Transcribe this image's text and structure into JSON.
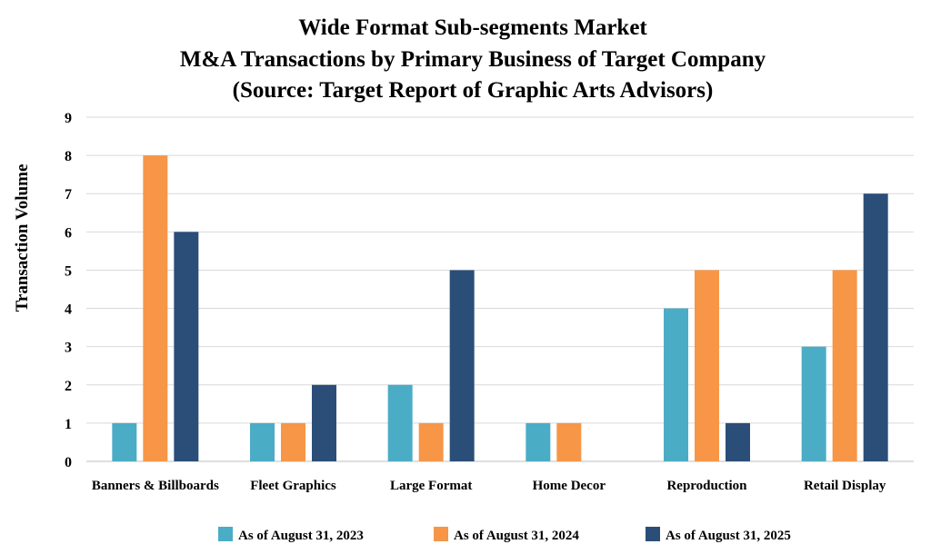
{
  "chart_data": {
    "type": "bar",
    "title": [
      "Wide Format Sub-segments Market",
      "M&A Transactions by Primary Business of Target Company",
      "(Source: Target Report of Graphic Arts Advisors)"
    ],
    "xlabel": "",
    "ylabel": "Transaction Volume",
    "ylim": [
      0,
      9
    ],
    "yticks": [
      "0",
      "1",
      "2",
      "3",
      "4",
      "5",
      "6",
      "7",
      "8",
      "9"
    ],
    "grid": true,
    "legend_position": "bottom",
    "categories": [
      "Banners & Billboards",
      "Fleet Graphics",
      "Large Format",
      "Home Decor",
      "Reproduction",
      "Retail Display"
    ],
    "series": [
      {
        "name": "As of August 31, 2023",
        "color": "#4bacc6",
        "values": [
          1,
          1,
          2,
          1,
          4,
          3
        ]
      },
      {
        "name": "As of August 31, 2024",
        "color": "#f79646",
        "values": [
          8,
          1,
          1,
          1,
          5,
          5
        ]
      },
      {
        "name": "As of August 31, 2025",
        "color": "#2a4e78",
        "values": [
          6,
          2,
          5,
          0,
          1,
          7
        ]
      }
    ]
  }
}
